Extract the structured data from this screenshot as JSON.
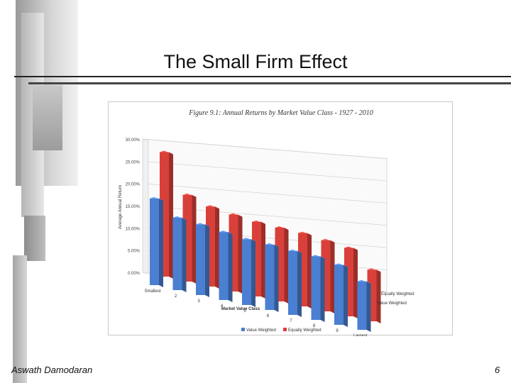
{
  "slide": {
    "title": "The Small Firm Effect",
    "author": "Aswath Damodaran",
    "page_number": "6"
  },
  "chart_data": {
    "type": "bar",
    "title": "Figure 9.1: Annual Returns by Market Value Class - 1927 - 2010",
    "xlabel": "Market Value Class",
    "ylabel": "Average Annual Return",
    "ylim": [
      0,
      30
    ],
    "y_tick_labels": [
      "0.00%",
      "5.00%",
      "10.00%",
      "15.00%",
      "20.00%",
      "25.00%",
      "30.00%"
    ],
    "categories": [
      "Smallest",
      "2",
      "3",
      "4",
      "5",
      "6",
      "7",
      "8",
      "9",
      "Largest"
    ],
    "depth_labels": [
      "Equally Weighted",
      "Value Weighted"
    ],
    "series": [
      {
        "name": "Value Weighted",
        "color": "#4a7fd1",
        "values": [
          19.5,
          16.3,
          15.9,
          15.3,
          14.8,
          14.7,
          14.4,
          14.3,
          13.5,
          10.9
        ]
      },
      {
        "name": "Equally Weighted",
        "color": "#d9403a",
        "values": [
          28.0,
          19.5,
          18.0,
          17.3,
          16.8,
          16.6,
          16.5,
          16.0,
          15.4,
          11.6
        ]
      }
    ],
    "legend": [
      "Value Weighted",
      "Equally Weighted"
    ]
  }
}
